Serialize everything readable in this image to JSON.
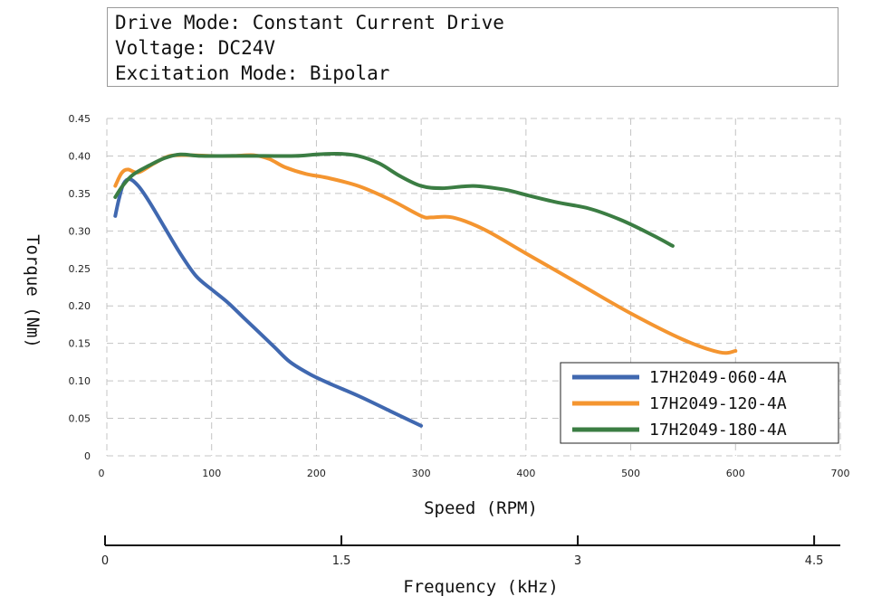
{
  "info": {
    "line1": "Drive Mode: Constant Current Drive",
    "line2": "Voltage: DC24V",
    "line3": "Excitation Mode: Bipolar"
  },
  "chart_data": {
    "type": "line",
    "xlabel": "Speed (RPM)",
    "ylabel": "Torque (Nm)",
    "xlim": [
      0,
      700
    ],
    "ylim": [
      0,
      0.45
    ],
    "x_ticks": [
      0,
      100,
      200,
      300,
      400,
      500,
      600,
      700
    ],
    "y_ticks": [
      0,
      0.05,
      0.1,
      0.15,
      0.2,
      0.25,
      0.3,
      0.35,
      0.4,
      0.45
    ],
    "y_tick_labels": [
      "0",
      "0.05",
      "0.10",
      "0.15",
      "0.20",
      "0.25",
      "0.30",
      "0.35",
      "0.40",
      "0.45"
    ],
    "grid": true,
    "legend_position": "bottom-right",
    "series": [
      {
        "name": "17H2049-060-4A",
        "color": "#4068b0",
        "x": [
          8,
          12,
          16,
          22,
          30,
          40,
          55,
          70,
          85,
          100,
          115,
          130,
          145,
          160,
          175,
          195,
          215,
          240,
          270,
          300
        ],
        "y": [
          0.32,
          0.345,
          0.363,
          0.369,
          0.36,
          0.34,
          0.305,
          0.27,
          0.24,
          0.222,
          0.205,
          0.185,
          0.165,
          0.145,
          0.125,
          0.108,
          0.095,
          0.08,
          0.06,
          0.04
        ]
      },
      {
        "name": "17H2049-120-4A",
        "color": "#f49530",
        "x": [
          8,
          14,
          20,
          30,
          45,
          60,
          80,
          100,
          120,
          140,
          155,
          170,
          190,
          210,
          240,
          270,
          300,
          310,
          330,
          360,
          400,
          450,
          500,
          550,
          585,
          600
        ],
        "y": [
          0.36,
          0.377,
          0.382,
          0.378,
          0.39,
          0.4,
          0.401,
          0.4,
          0.4,
          0.401,
          0.396,
          0.385,
          0.376,
          0.371,
          0.36,
          0.342,
          0.32,
          0.318,
          0.318,
          0.302,
          0.27,
          0.23,
          0.19,
          0.155,
          0.138,
          0.14
        ]
      },
      {
        "name": "17H2049-180-4A",
        "color": "#3b7d43",
        "x": [
          8,
          15,
          25,
          40,
          55,
          70,
          90,
          120,
          150,
          180,
          200,
          220,
          240,
          260,
          280,
          300,
          320,
          350,
          380,
          400,
          430,
          460,
          490,
          520,
          540
        ],
        "y": [
          0.345,
          0.36,
          0.375,
          0.387,
          0.397,
          0.402,
          0.4,
          0.4,
          0.4,
          0.4,
          0.402,
          0.403,
          0.4,
          0.39,
          0.373,
          0.36,
          0.357,
          0.36,
          0.355,
          0.348,
          0.338,
          0.33,
          0.315,
          0.295,
          0.28
        ]
      }
    ],
    "secondary_axis": {
      "label": "Frequency (kHz)",
      "ticks": [
        0,
        1.5,
        3,
        4.5
      ],
      "tick_labels": [
        "0",
        "1.5",
        "3",
        "4.5"
      ],
      "max": 4.666
    }
  }
}
